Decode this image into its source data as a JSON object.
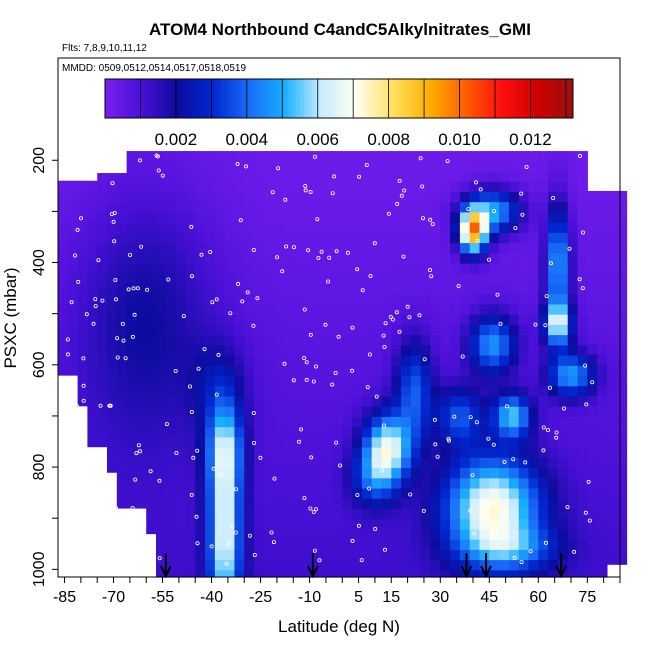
{
  "chart_data": {
    "type": "heatmap",
    "title": "ATOM4 Northbound C4andC5Alkylnitrates_GMI",
    "subtitle_flights": "Flts: 7,8,9,10,11,12",
    "subtitle_dates": "MMDD: 0509,0512,0514,0517,0518,0519",
    "xlabel": "Latitude (deg N)",
    "ylabel": "PSXC (mbar)",
    "xlim": [
      -87,
      85
    ],
    "ylim": [
      1015,
      0
    ],
    "x_ticks": [
      -85,
      -70,
      -55,
      -40,
      -25,
      -10,
      5,
      15,
      30,
      45,
      60,
      75
    ],
    "y_ticks": [
      200,
      400,
      600,
      800,
      1000
    ],
    "colorbar": {
      "range": [
        0,
        0.0132
      ],
      "ticks": [
        "0.002",
        "0.004",
        "0.006",
        "0.008",
        "0.010",
        "0.012"
      ],
      "colors": [
        "#7a1ff0",
        "#4a10d8",
        "#0c0c9e",
        "#0028d0",
        "#1a6cf8",
        "#18b0ff",
        "#c8ecff",
        "#fffff0",
        "#ffe060",
        "#ffb000",
        "#ff6000",
        "#ff1010",
        "#d00000",
        "#9a1010"
      ]
    },
    "arrow_latitudes": [
      -54,
      -9,
      38,
      44,
      67
    ],
    "hotspots": [
      {
        "lat": -36,
        "p": 930,
        "sig_lat": 3.5,
        "sig_p": 130,
        "value": 0.0055
      },
      {
        "lat": -36,
        "p": 760,
        "sig_lat": 4,
        "sig_p": 60,
        "value": 0.0032
      },
      {
        "lat": 46,
        "p": 880,
        "sig_lat": 10,
        "sig_p": 70,
        "value": 0.0062
      },
      {
        "lat": 14,
        "p": 760,
        "sig_lat": 5,
        "sig_p": 45,
        "value": 0.0054
      },
      {
        "lat": 40,
        "p": 340,
        "sig_lat": 3,
        "sig_p": 30,
        "value": 0.0085
      },
      {
        "lat": 46,
        "p": 300,
        "sig_lat": 6,
        "sig_p": 30,
        "value": 0.0045
      },
      {
        "lat": 46,
        "p": 560,
        "sig_lat": 5,
        "sig_p": 40,
        "value": 0.004
      },
      {
        "lat": 66,
        "p": 400,
        "sig_lat": 2.5,
        "sig_p": 80,
        "value": 0.0045
      },
      {
        "lat": 66,
        "p": 520,
        "sig_lat": 3,
        "sig_p": 30,
        "value": 0.005
      },
      {
        "lat": 70,
        "p": 620,
        "sig_lat": 5,
        "sig_p": 30,
        "value": 0.004
      },
      {
        "lat": 52,
        "p": 700,
        "sig_lat": 4,
        "sig_p": 30,
        "value": 0.0045
      },
      {
        "lat": 22,
        "p": 650,
        "sig_lat": 4,
        "sig_p": 70,
        "value": 0.003
      },
      {
        "lat": 36,
        "p": 700,
        "sig_lat": 5,
        "sig_p": 40,
        "value": 0.0028
      },
      {
        "lat": 10,
        "p": 820,
        "sig_lat": 5,
        "sig_p": 40,
        "value": 0.0028
      },
      {
        "lat": 52,
        "p": 960,
        "sig_lat": 10,
        "sig_p": 30,
        "value": 0.0022
      },
      {
        "lat": -38,
        "p": 640,
        "sig_lat": 6,
        "sig_p": 60,
        "value": 0.0012
      },
      {
        "lat": -60,
        "p": 500,
        "sig_lat": 15,
        "sig_p": 180,
        "value": 0.0014
      }
    ]
  }
}
